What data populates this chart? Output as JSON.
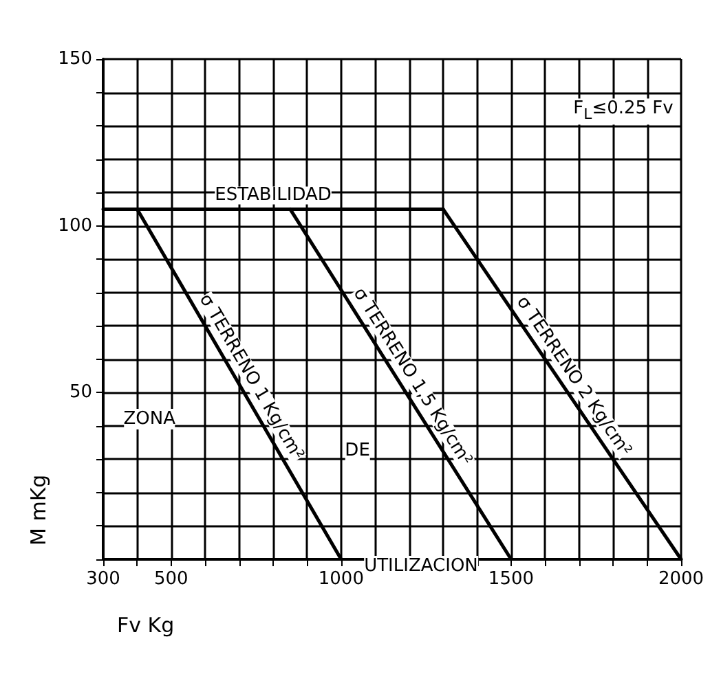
{
  "chart_data": {
    "type": "line",
    "xlabel": "Fv Kg",
    "ylabel": "M mKg",
    "xlim": [
      300,
      2000
    ],
    "ylim": [
      0,
      150
    ],
    "xticks": [
      300,
      {
        "value": 400,
        "label": null
      },
      500,
      {
        "value": 600,
        "label": null
      },
      {
        "value": 700,
        "label": null
      },
      {
        "value": 800,
        "label": null
      },
      {
        "value": 900,
        "label": null
      },
      1000,
      {
        "value": 1100,
        "label": null
      },
      {
        "value": 1200,
        "label": null
      },
      {
        "value": 1300,
        "label": null
      },
      {
        "value": 1400,
        "label": null
      },
      1500,
      {
        "value": 1600,
        "label": null
      },
      {
        "value": 1700,
        "label": null
      },
      {
        "value": 1800,
        "label": null
      },
      {
        "value": 1900,
        "label": null
      },
      2000
    ],
    "yticks": [
      {
        "value": 0,
        "label": null
      },
      {
        "value": 10,
        "label": null
      },
      {
        "value": 20,
        "label": null
      },
      {
        "value": 30,
        "label": null
      },
      {
        "value": 40,
        "label": null
      },
      50,
      {
        "value": 60,
        "label": null
      },
      {
        "value": 70,
        "label": null
      },
      {
        "value": 80,
        "label": null
      },
      {
        "value": 90,
        "label": null
      },
      100,
      {
        "value": 110,
        "label": null
      },
      {
        "value": 120,
        "label": null
      },
      {
        "value": 130,
        "label": null
      },
      {
        "value": 140,
        "label": null
      },
      150
    ],
    "grid": true,
    "legend": false,
    "marker": "none",
    "line_style": "solid",
    "series": [
      {
        "name": "ESTABILIDAD",
        "color": "#000000",
        "x": [
          300,
          1300
        ],
        "values": [
          105,
          105
        ]
      },
      {
        "name": "σ TERRENO 1 Kg/cm²",
        "color": "#000000",
        "x": [
          400,
          1000
        ],
        "values": [
          105,
          0
        ]
      },
      {
        "name": "σ TERRENO 1,5 Kg/cm²",
        "color": "#000000",
        "x": [
          850,
          1500
        ],
        "values": [
          105,
          0
        ]
      },
      {
        "name": "σ TERRENO 2 Kg/cm²",
        "color": "#000000",
        "x": [
          1300,
          2000
        ],
        "values": [
          105,
          0
        ]
      }
    ],
    "annotations": [
      "F$_{L}$≤0.25 Fv",
      "ZONA",
      "DE",
      "UTILIZACION"
    ]
  }
}
